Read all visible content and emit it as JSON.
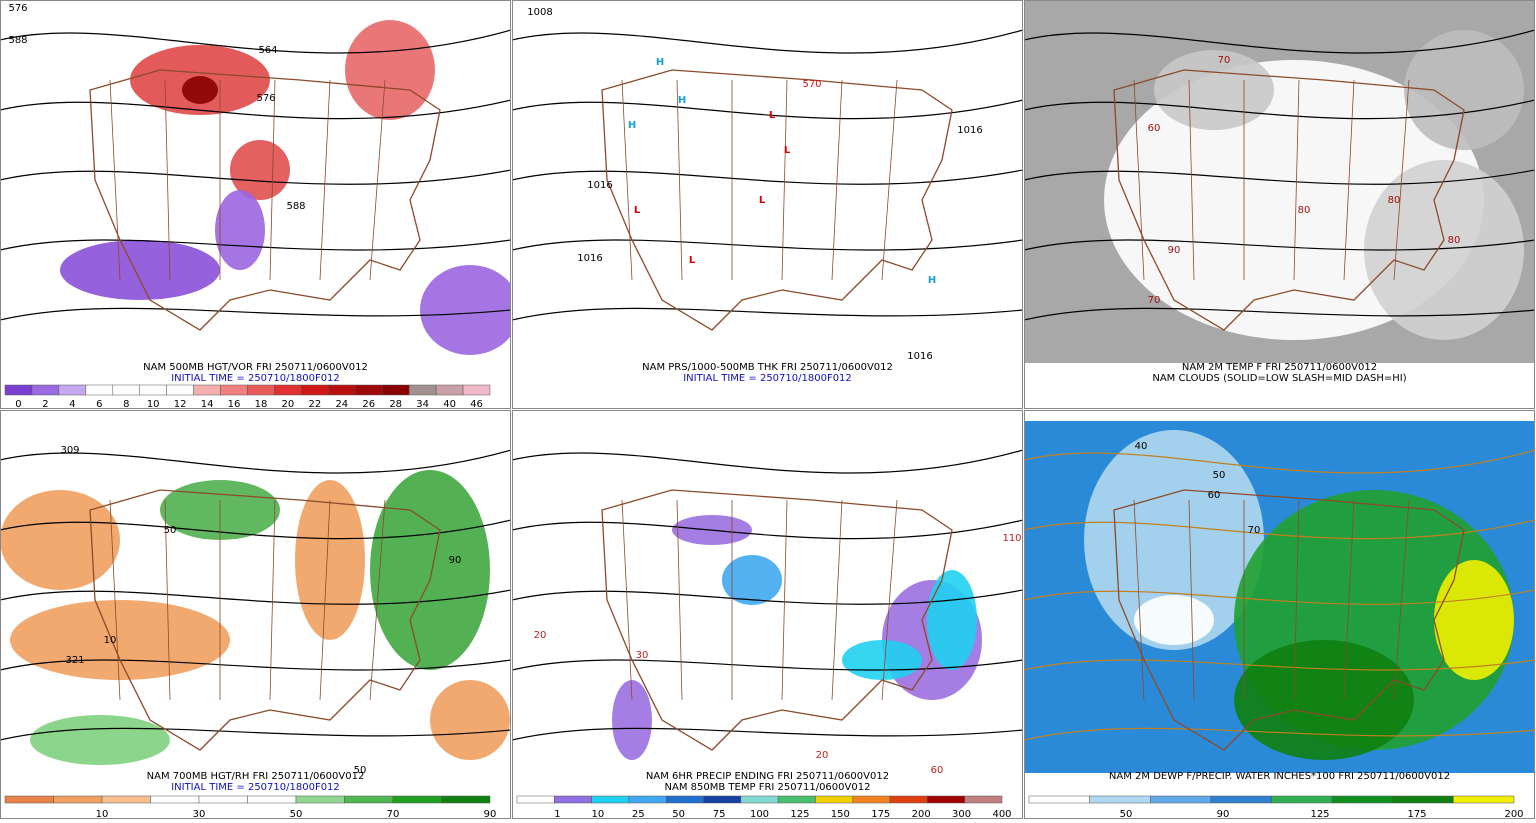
{
  "panels": [
    {
      "captions": [
        "NAM 500MB HGT/VOR FRI 250711/0600V012",
        "INITIAL TIME = 250710/1800F012"
      ],
      "colorbar": {
        "colors": [
          "#7a3fd0",
          "#9a6ae0",
          "#c4a8f0",
          "#ffffff",
          "#ffffff",
          "#ffffff",
          "#ffffff",
          "#f4b0b0",
          "#f08080",
          "#e85a5a",
          "#e03030",
          "#d01818",
          "#b81010",
          "#a00808",
          "#880000",
          "#a09090",
          "#c8a0a8",
          "#f0b8c8"
        ],
        "labels": [
          "0",
          "2",
          "4",
          "6",
          "8",
          "10",
          "12",
          "14",
          "16",
          "18",
          "20",
          "22",
          "24",
          "26",
          "28",
          "34",
          "40",
          "46"
        ]
      },
      "map_labels": [
        "576",
        "588",
        "564",
        "576",
        "588"
      ]
    },
    {
      "captions": [
        "NAM PRS/1000-500MB THK FRI 250711/0600V012",
        "INITIAL TIME = 250710/1800F012"
      ],
      "map_labels": [
        "1008",
        "1016",
        "1016",
        "1016",
        "1016",
        "570",
        "H",
        "H",
        "H",
        "H",
        "L",
        "L",
        "L",
        "L",
        "L"
      ]
    },
    {
      "captions": [
        "NAM 2M TEMP F FRI 250711/0600V012",
        "NAM CLOUDS (SOLID=LOW SLASH=MID DASH=HI)"
      ],
      "map_labels": [
        "60",
        "70",
        "80",
        "80",
        "90",
        "80",
        "70"
      ]
    },
    {
      "captions": [
        "NAM 700MB HGT/RH FRI 250711/0600V012",
        "INITIAL TIME = 250710/1800F012"
      ],
      "colorbar": {
        "colors": [
          "#e8844a",
          "#f0a060",
          "#f8c090",
          "#ffffff",
          "#ffffff",
          "#ffffff",
          "#90d890",
          "#50b850",
          "#20a020",
          "#108010"
        ],
        "labels": [
          "10",
          "30",
          "50",
          "70",
          "90"
        ]
      },
      "map_labels": [
        "309",
        "321",
        "50",
        "10",
        "90",
        "50"
      ]
    },
    {
      "captions": [
        "NAM 6HR PRECIP ENDING FRI 250711/0600V012",
        "NAM 850MB TEMP FRI 250711/0600V012"
      ],
      "colorbar": {
        "colors": [
          "#ffffff",
          "#9070e0",
          "#20d0f0",
          "#40a8f0",
          "#2070d0",
          "#1840a0",
          "#80d8d0",
          "#48c070",
          "#f0d000",
          "#f08020",
          "#e04010",
          "#a00000",
          "#c08080"
        ],
        "labels": [
          "1",
          "10",
          "25",
          "50",
          "75",
          "100",
          "125",
          "150",
          "175",
          "200",
          "300",
          "400"
        ]
      },
      "map_labels": [
        "20",
        "30",
        "20",
        "110",
        "60"
      ]
    },
    {
      "captions": [
        "NAM 2M DEWP F/PRECIP. WATER INCHES*100 FRI 250711/0600V012"
      ],
      "colorbar": {
        "colors": [
          "#ffffff",
          "#b0d8f0",
          "#60a8e8",
          "#3080d0",
          "#30b050",
          "#10901f",
          "#108010",
          "#f0f000"
        ],
        "labels": [
          "50",
          "90",
          "125",
          "175",
          "200"
        ]
      },
      "map_labels": [
        "40",
        "50",
        "60",
        "70"
      ]
    }
  ]
}
